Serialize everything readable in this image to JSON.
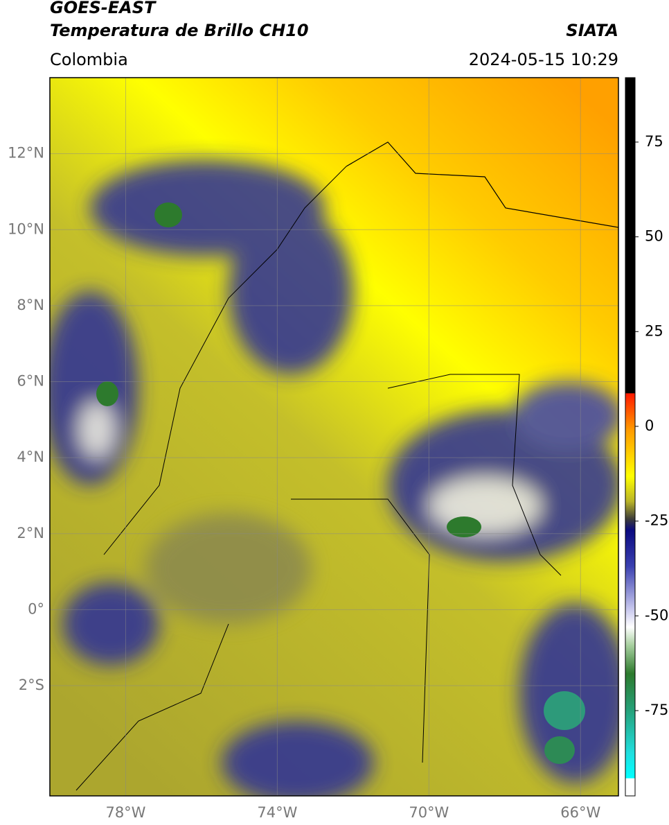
{
  "header": {
    "title": "GOES-EAST",
    "subtitle": "Temperatura de Brillo CH10",
    "source": "SIATA",
    "region": "Colombia",
    "timestamp": "2024-05-15 10:29"
  },
  "map": {
    "xlim": [
      -80,
      -65
    ],
    "ylim": [
      -4.9,
      14
    ],
    "xticks": [
      {
        "value": -78,
        "label": "78°W"
      },
      {
        "value": -74,
        "label": "74°W"
      },
      {
        "value": -70,
        "label": "70°W"
      },
      {
        "value": -66,
        "label": "66°W"
      }
    ],
    "yticks": [
      {
        "value": 12,
        "label": "12°N"
      },
      {
        "value": 10,
        "label": "10°N"
      },
      {
        "value": 8,
        "label": "8°N"
      },
      {
        "value": 6,
        "label": "6°N"
      },
      {
        "value": 4,
        "label": "4°N"
      },
      {
        "value": 2,
        "label": "2°N"
      },
      {
        "value": 0,
        "label": "0°"
      },
      {
        "value": -2,
        "label": "2°S"
      }
    ]
  },
  "colorbar": {
    "lim": [
      -97.5,
      92
    ],
    "ticks": [
      75,
      50,
      25,
      0,
      -25,
      -50,
      -75
    ]
  }
}
